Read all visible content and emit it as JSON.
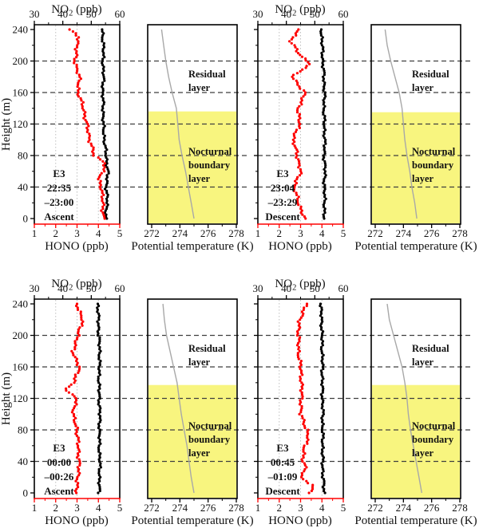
{
  "figure": {
    "axes": {
      "height": {
        "label": "Height (m)",
        "range": [
          0,
          240
        ],
        "major_ticks": [
          0,
          40,
          80,
          120,
          160,
          200,
          240
        ],
        "minor_step": 20,
        "dashed_gridline_heights": [
          40,
          80,
          120,
          160,
          200
        ]
      },
      "no2": {
        "label_main": "NO",
        "label_sub": "2",
        "label_suffix": " (ppb)",
        "range": [
          30,
          60
        ],
        "major_ticks": [
          30,
          40,
          50,
          60
        ],
        "minor_ticks": [
          35,
          45,
          55
        ]
      },
      "hono": {
        "label": "HONO (ppb)",
        "range": [
          1,
          5
        ],
        "major_ticks": [
          1,
          2,
          3,
          4,
          5
        ],
        "minor_ticks": [
          1.5,
          2.5,
          3.5,
          4.5
        ],
        "dotted_gridlines": [
          2,
          3,
          4
        ]
      },
      "theta": {
        "label": "Potential temperature (K)",
        "range": [
          272,
          278
        ],
        "major_ticks": [
          272,
          274,
          276,
          278
        ],
        "minor_ticks": [
          273,
          275,
          277
        ]
      }
    },
    "layer_labels": {
      "residual": [
        "Residual",
        "layer"
      ],
      "nocturnal": [
        "Nocturnal",
        "boundary",
        "layer"
      ]
    },
    "colors": {
      "hono_series": "#fe0000",
      "no2_series": "#000000",
      "theta_series": "#a8a8a8",
      "nbl_fill": "#f8f57f",
      "dashed_line": "#3f3f3f",
      "dotted_grid": "#bfbfbf",
      "frame": "#000000",
      "hono_axis": "#fe0000"
    }
  },
  "chart_data": [
    {
      "type": "scatter",
      "panel": "top-left",
      "annotation": [
        "E3",
        "22:35",
        "–23:00",
        "Ascent"
      ],
      "nbl_top_m": 136,
      "series": {
        "hono": [
          [
            0,
            4.25
          ],
          [
            20,
            4.2
          ],
          [
            40,
            4.15
          ],
          [
            50,
            4.0
          ],
          [
            60,
            4.2
          ],
          [
            70,
            4.35
          ],
          [
            80,
            3.8
          ],
          [
            100,
            3.6
          ],
          [
            120,
            3.45
          ],
          [
            140,
            3.3
          ],
          [
            160,
            3.05
          ],
          [
            180,
            3.1
          ],
          [
            200,
            2.9
          ],
          [
            220,
            3.0
          ],
          [
            230,
            3.1
          ],
          [
            240,
            2.65
          ]
        ],
        "no2": [
          [
            0,
            55.0
          ],
          [
            20,
            55.6
          ],
          [
            40,
            55.3
          ],
          [
            60,
            55.8
          ],
          [
            80,
            55.2
          ],
          [
            100,
            54.6
          ],
          [
            120,
            54.2
          ],
          [
            140,
            54.2
          ],
          [
            160,
            54.0
          ],
          [
            180,
            54.3
          ],
          [
            200,
            54.1
          ],
          [
            220,
            54.3
          ],
          [
            240,
            53.8
          ]
        ],
        "theta": [
          [
            0,
            275.0
          ],
          [
            20,
            274.8
          ],
          [
            40,
            274.6
          ],
          [
            60,
            274.4
          ],
          [
            80,
            274.15
          ],
          [
            100,
            273.95
          ],
          [
            120,
            273.85
          ],
          [
            140,
            273.75
          ],
          [
            160,
            273.45
          ],
          [
            180,
            273.2
          ],
          [
            200,
            273.0
          ],
          [
            220,
            272.85
          ],
          [
            240,
            272.7
          ]
        ]
      }
    },
    {
      "type": "scatter",
      "panel": "top-right",
      "annotation": [
        "E3",
        "23:04",
        "–23:29",
        "Descent"
      ],
      "nbl_top_m": 135,
      "series": {
        "hono": [
          [
            0,
            3.2
          ],
          [
            20,
            2.9
          ],
          [
            40,
            2.7
          ],
          [
            60,
            3.0
          ],
          [
            80,
            2.85
          ],
          [
            100,
            2.65
          ],
          [
            120,
            2.95
          ],
          [
            140,
            2.9
          ],
          [
            160,
            3.2
          ],
          [
            180,
            2.6
          ],
          [
            196,
            3.44
          ],
          [
            210,
            2.9
          ],
          [
            225,
            2.55
          ],
          [
            240,
            2.9
          ]
        ],
        "no2": [
          [
            0,
            53.2
          ],
          [
            20,
            53.5
          ],
          [
            40,
            53.3
          ],
          [
            60,
            53.6
          ],
          [
            80,
            53.3
          ],
          [
            100,
            53.5
          ],
          [
            120,
            53.3
          ],
          [
            140,
            53.2
          ],
          [
            160,
            53.4
          ],
          [
            180,
            53.2
          ],
          [
            200,
            52.8
          ],
          [
            220,
            52.6
          ],
          [
            240,
            52.3
          ]
        ],
        "theta": [
          [
            0,
            274.95
          ],
          [
            20,
            274.8
          ],
          [
            40,
            274.6
          ],
          [
            60,
            274.45
          ],
          [
            80,
            274.25
          ],
          [
            100,
            274.1
          ],
          [
            120,
            274.0
          ],
          [
            140,
            273.9
          ],
          [
            160,
            273.7
          ],
          [
            180,
            273.4
          ],
          [
            200,
            273.1
          ],
          [
            220,
            272.85
          ],
          [
            240,
            272.7
          ]
        ]
      }
    },
    {
      "type": "scatter",
      "panel": "bottom-left",
      "annotation": [
        "E3",
        "00:00",
        "–00:26",
        "Ascent"
      ],
      "nbl_top_m": 137,
      "series": {
        "hono": [
          [
            0,
            2.95
          ],
          [
            20,
            3.05
          ],
          [
            40,
            3.1
          ],
          [
            60,
            3.05
          ],
          [
            80,
            3.0
          ],
          [
            100,
            2.8
          ],
          [
            120,
            3.0
          ],
          [
            130,
            2.45
          ],
          [
            140,
            2.85
          ],
          [
            160,
            3.1
          ],
          [
            180,
            2.8
          ],
          [
            200,
            3.05
          ],
          [
            220,
            3.25
          ],
          [
            240,
            3.0
          ]
        ],
        "no2": [
          [
            0,
            52.7
          ],
          [
            20,
            52.9
          ],
          [
            40,
            53.0
          ],
          [
            60,
            52.8
          ],
          [
            80,
            52.9
          ],
          [
            100,
            53.0
          ],
          [
            120,
            52.8
          ],
          [
            140,
            52.7
          ],
          [
            160,
            52.8
          ],
          [
            180,
            53.0
          ],
          [
            200,
            52.6
          ],
          [
            220,
            52.5
          ],
          [
            240,
            52.3
          ]
        ],
        "theta": [
          [
            0,
            275.0
          ],
          [
            20,
            274.8
          ],
          [
            40,
            274.65
          ],
          [
            60,
            274.5
          ],
          [
            80,
            274.3
          ],
          [
            100,
            274.1
          ],
          [
            120,
            273.95
          ],
          [
            140,
            273.8
          ],
          [
            160,
            273.55
          ],
          [
            180,
            273.3
          ],
          [
            200,
            273.05
          ],
          [
            220,
            272.9
          ],
          [
            240,
            272.8
          ]
        ]
      }
    },
    {
      "type": "scatter",
      "panel": "bottom-right",
      "annotation": [
        "E3",
        "00:45",
        "–01:09",
        "Descent"
      ],
      "nbl_top_m": 137,
      "series": {
        "hono": [
          [
            0,
            3.45
          ],
          [
            10,
            3.55
          ],
          [
            20,
            3.0
          ],
          [
            30,
            3.25
          ],
          [
            40,
            3.1
          ],
          [
            60,
            3.2
          ],
          [
            70,
            3.35
          ],
          [
            80,
            3.3
          ],
          [
            100,
            3.0
          ],
          [
            120,
            3.05
          ],
          [
            140,
            3.05
          ],
          [
            160,
            3.0
          ],
          [
            180,
            2.9
          ],
          [
            200,
            2.9
          ],
          [
            220,
            2.95
          ],
          [
            240,
            3.3
          ]
        ],
        "no2": [
          [
            0,
            53.3
          ],
          [
            20,
            52.9
          ],
          [
            40,
            52.7
          ],
          [
            60,
            52.8
          ],
          [
            80,
            52.7
          ],
          [
            100,
            52.8
          ],
          [
            120,
            52.7
          ],
          [
            140,
            52.6
          ],
          [
            160,
            52.7
          ],
          [
            180,
            52.6
          ],
          [
            200,
            52.5
          ],
          [
            220,
            52.4
          ],
          [
            240,
            52.0
          ]
        ],
        "theta": [
          [
            0,
            275.3
          ],
          [
            20,
            275.1
          ],
          [
            40,
            274.9
          ],
          [
            60,
            274.7
          ],
          [
            80,
            274.5
          ],
          [
            100,
            274.35
          ],
          [
            120,
            274.25
          ],
          [
            140,
            274.1
          ],
          [
            160,
            273.9
          ],
          [
            180,
            273.6
          ],
          [
            200,
            273.3
          ],
          [
            220,
            273.0
          ],
          [
            240,
            272.85
          ]
        ]
      }
    }
  ]
}
